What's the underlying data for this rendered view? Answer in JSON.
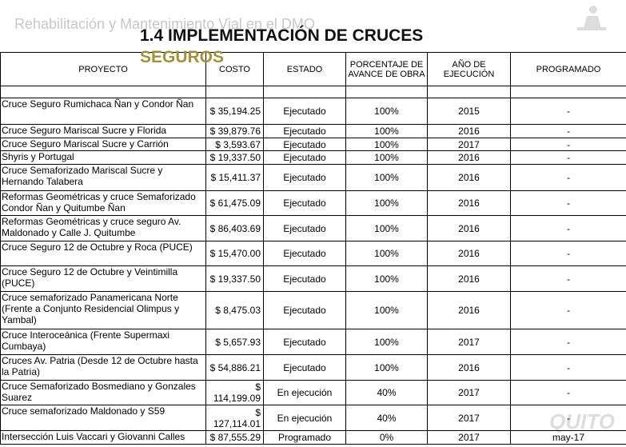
{
  "background_title": "Rehabilitación y Mantenimiento Vial en el DMQ",
  "title_line1": "1.4 IMPLEMENTACIÓN DE CRUCES",
  "title_line2": "SEGUROS",
  "logo": "QUITO",
  "table": {
    "headers": [
      "PROYECTO",
      "COSTO",
      "ESTADO",
      "PORCENTAJE DE AVANCE DE OBRA",
      "AÑO DE EJECUCIÓN",
      "PROGRAMADO"
    ],
    "rows": [
      [
        "Cruce Seguro Rumichaca Ñan y Condor Ñan",
        "$ 35,194.25",
        "Ejecutado",
        "100%",
        "2015",
        "-"
      ],
      [
        "Cruce Seguro Mariscal Sucre y Florida",
        "$ 39,879.76",
        "Ejecutado",
        "100%",
        "2016",
        "-"
      ],
      [
        "Cruce Seguro Mariscal Sucre y Carrión",
        "$ 3,593.67",
        "Ejecutado",
        "100%",
        "2017",
        "-"
      ],
      [
        "Shyris y Portugal",
        "$ 19,337.50",
        "Ejecutado",
        "100%",
        "2016",
        "-"
      ],
      [
        "Cruce Semaforizado Mariscal Sucre y Hernando Talabera",
        "$ 15,411.37",
        "Ejecutado",
        "100%",
        "2016",
        "-"
      ],
      [
        "Reformas Geométricas y cruce Semaforizado Condor Ñan y Quitumbe Ñan",
        "$ 61,475.09",
        "Ejecutado",
        "100%",
        "2016",
        "-"
      ],
      [
        "Reformas Geométricas y cruce seguro Av. Maldonado y Calle J. Quitumbe",
        "$ 86,403.69",
        "Ejecutado",
        "100%",
        "2016",
        "-"
      ],
      [
        "Cruce Seguro 12 de Octubre y Roca (PUCE)",
        "$ 15,470.00",
        "Ejecutado",
        "100%",
        "2016",
        "-"
      ],
      [
        "Cruce Seguro 12 de Octubre y Veintimilla (PUCE)",
        "$ 19,337.50",
        "Ejecutado",
        "100%",
        "2016",
        "-"
      ],
      [
        "Cruce semaforizado Panamericana Norte (Frente a Conjunto Residencial Olimpus y Yambal)",
        "$ 8,475.03",
        "Ejecutado",
        "100%",
        "2016",
        "-"
      ],
      [
        "Cruce Interoceánica (Frente Supermaxi Cumbaya)",
        "$ 5,657.93",
        "Ejecutado",
        "100%",
        "2017",
        "-"
      ],
      [
        "Cruces Av. Patria (Desde 12 de Octubre hasta la Patria)",
        "$ 54,886.21",
        "Ejecutado",
        "100%",
        "2016",
        "-"
      ],
      [
        "Cruce Semaforizado Bosmediano y Gonzales Suarez",
        "$ 114,199.09",
        "En ejecución",
        "40%",
        "2017",
        "-"
      ],
      [
        "Cruce semaforizado Maldonado y S59",
        "$ 127,114.01",
        "En ejecución",
        "40%",
        "2017",
        "-"
      ],
      [
        "Intersección Luis Vaccari y Giovanni Calles",
        "$ 87,555.29",
        "Programado",
        "0%",
        "2017",
        "may-17"
      ]
    ]
  }
}
